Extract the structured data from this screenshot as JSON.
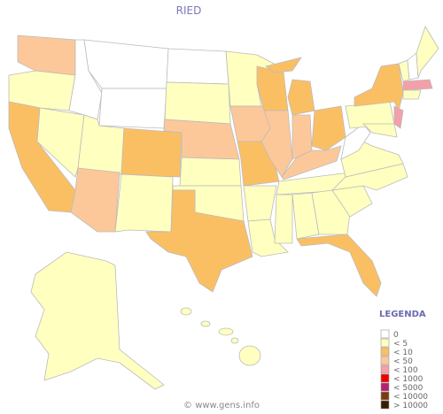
{
  "title": "RIED",
  "legend": {
    "title": "LEGENDA",
    "items": [
      {
        "label": "0",
        "color": "#ffffff"
      },
      {
        "label": "< 5",
        "color": "#ffffc0"
      },
      {
        "label": "< 10",
        "color": "#fbbf63"
      },
      {
        "label": "< 50",
        "color": "#fcc89a"
      },
      {
        "label": "< 100",
        "color": "#f4a0a8"
      },
      {
        "label": "< 1000",
        "color": "#ee0000"
      },
      {
        "label": "< 5000",
        "color": "#b4206e"
      },
      {
        "label": "< 10000",
        "color": "#7a3a10"
      },
      {
        "label": "> 10000",
        "color": "#3c1c00"
      }
    ]
  },
  "footer": "© www.gens.info"
}
